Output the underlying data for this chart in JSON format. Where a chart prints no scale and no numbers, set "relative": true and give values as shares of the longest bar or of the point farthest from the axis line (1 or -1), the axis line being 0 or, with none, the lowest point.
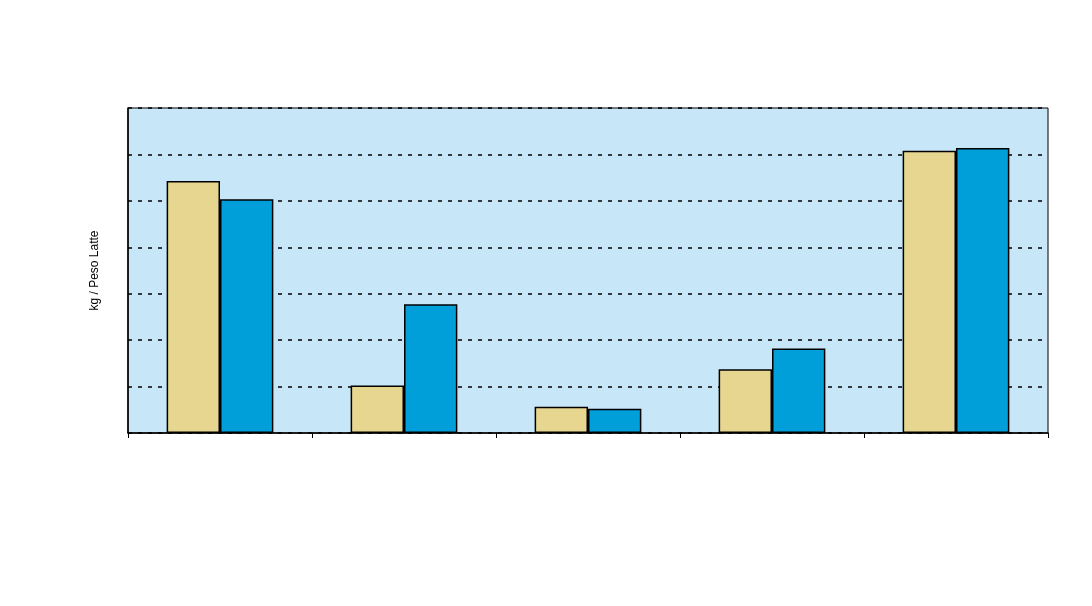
{
  "chart_data": {
    "type": "bar",
    "ylabel": "kg / Peso Latte",
    "relative": true,
    "grid": "y",
    "categories": [
      null,
      null,
      null,
      null,
      null
    ],
    "series": [
      {
        "color": "#e6d690",
        "values": [
          0.884,
          0.167,
          0.092,
          0.224,
          0.99
        ]
      },
      {
        "color": "#009fda",
        "values": [
          0.82,
          0.452,
          0.085,
          0.296,
          1
        ]
      }
    ]
  }
}
